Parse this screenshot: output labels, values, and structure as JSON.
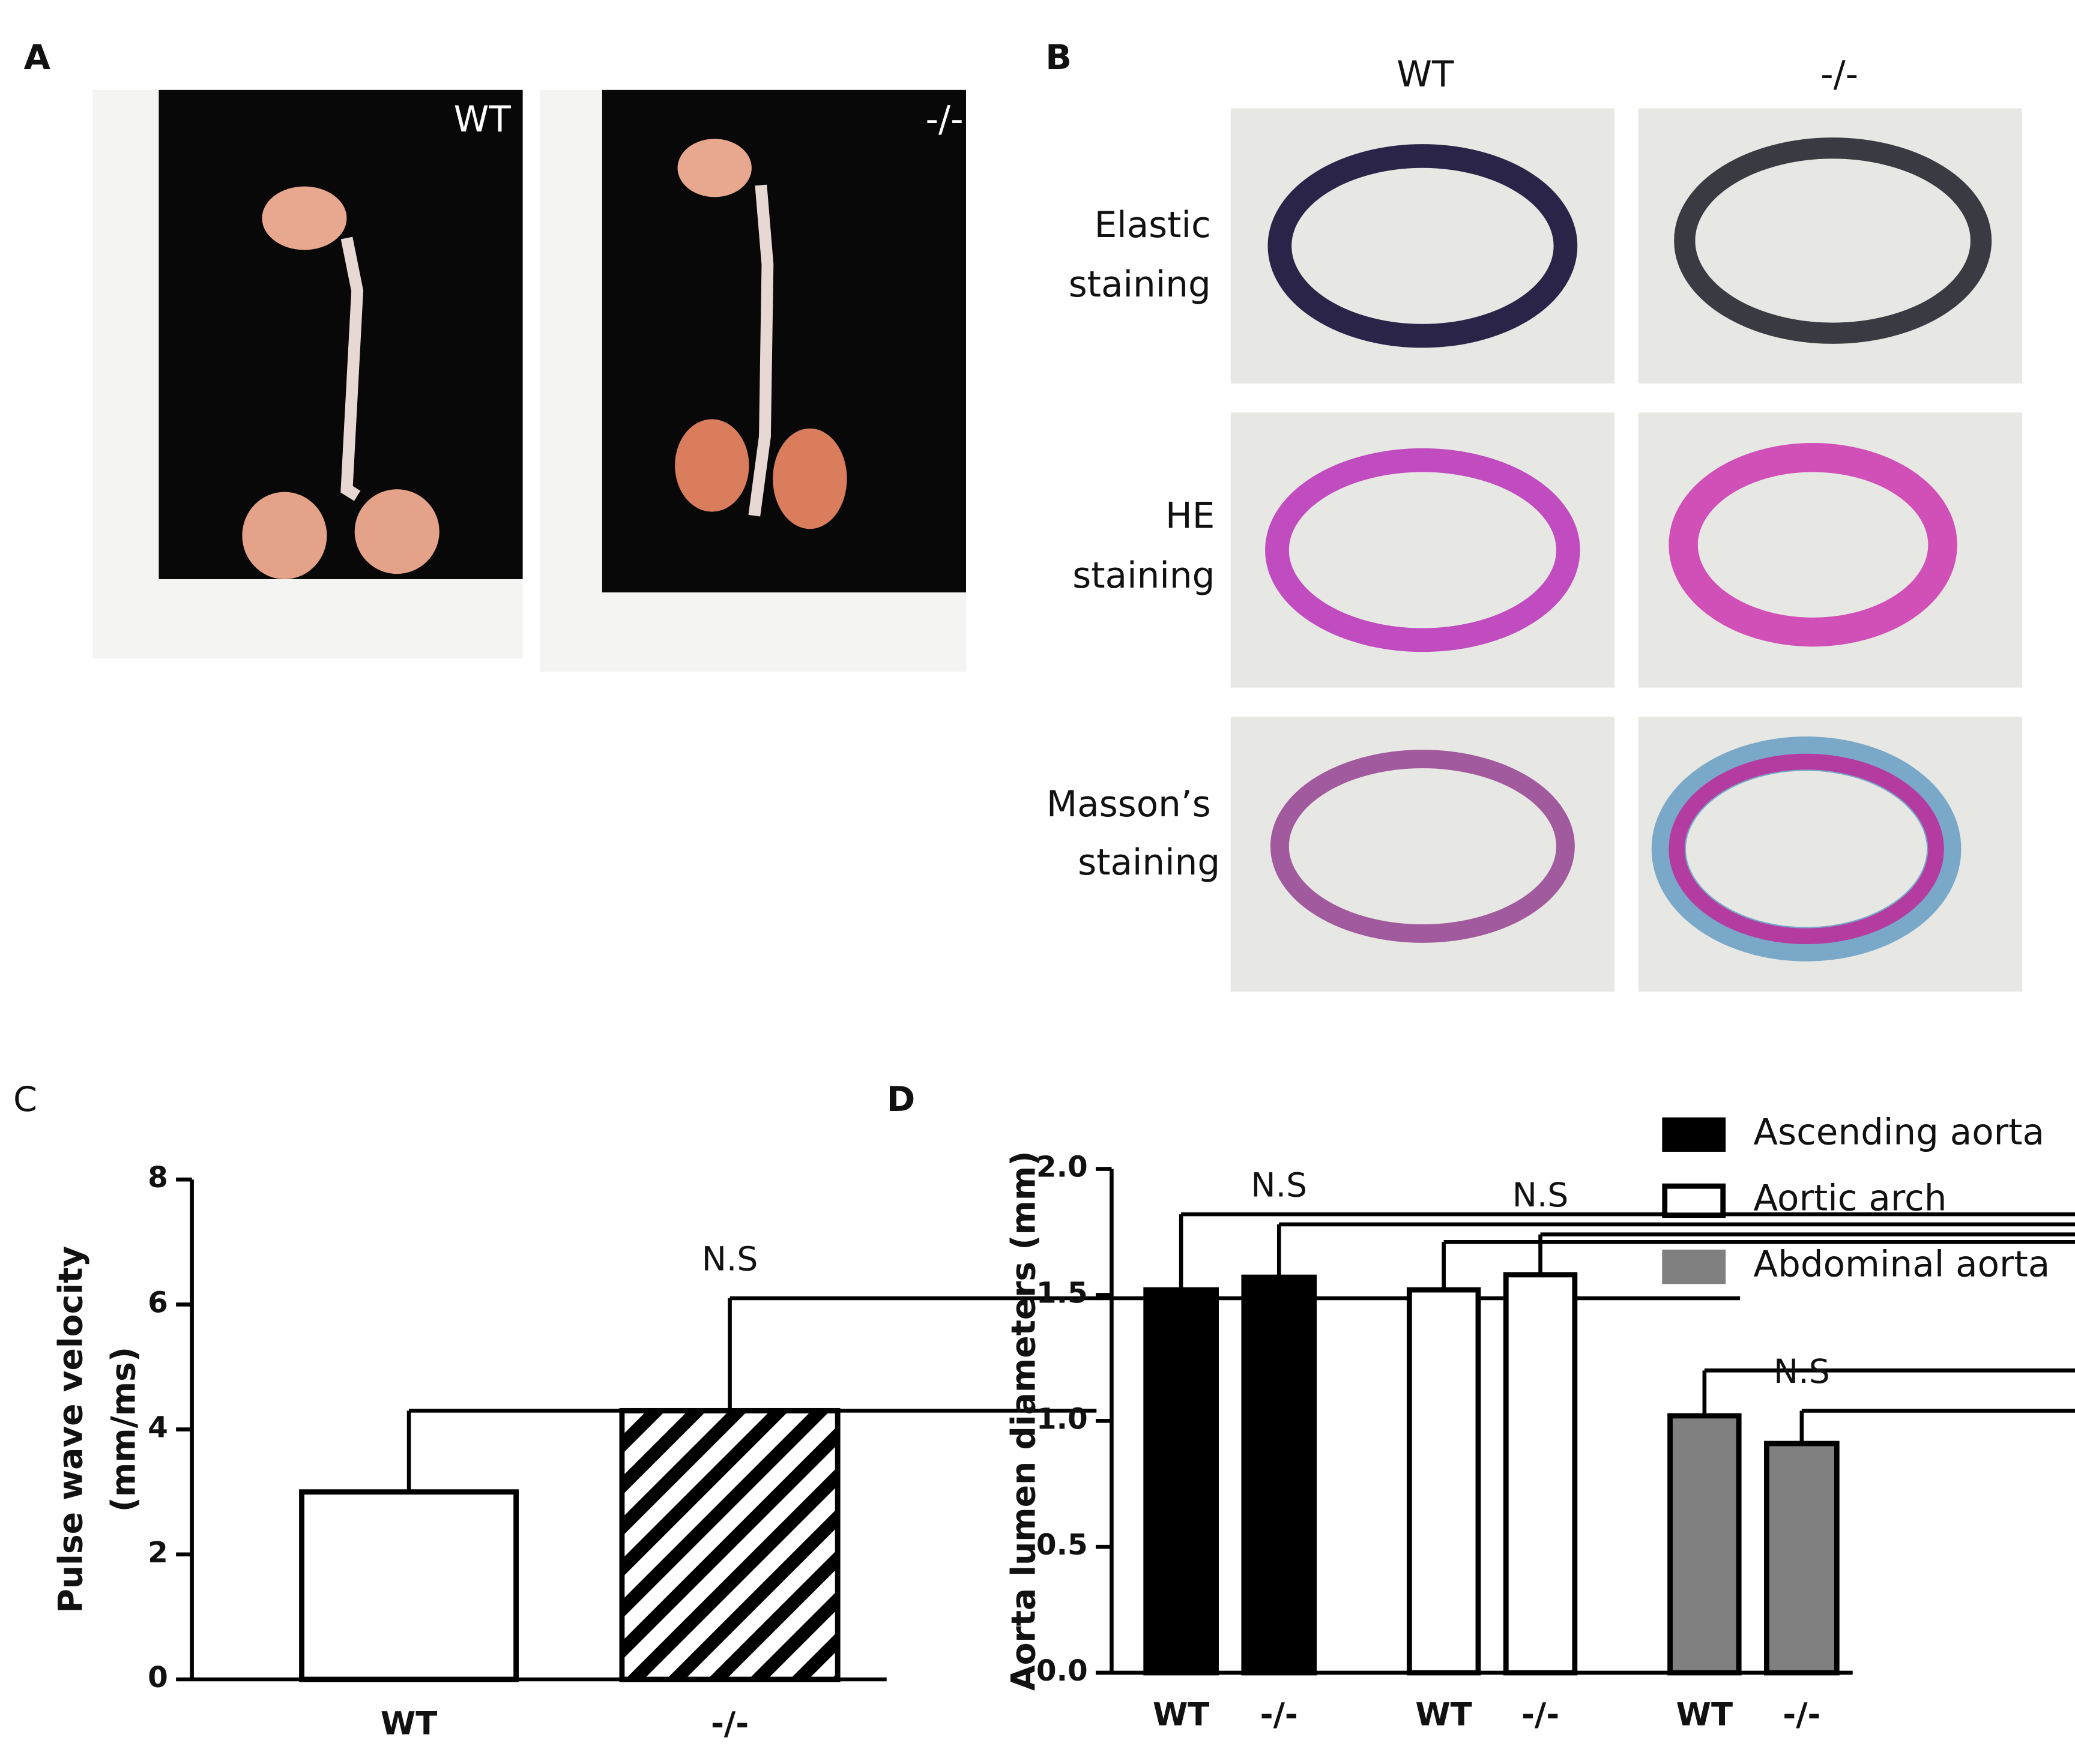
{
  "panels": {
    "labels": [
      "A",
      "B",
      "C",
      "D"
    ]
  },
  "photos": {
    "labels": [
      "WT",
      "-/-"
    ]
  },
  "histology": {
    "columns": [
      "WT",
      "-/-"
    ],
    "rows": [
      [
        "Elastic",
        "staining"
      ],
      [
        "HE",
        "staining"
      ],
      [
        "Masson’s",
        "staining"
      ]
    ]
  },
  "chart_data": [
    {
      "type": "bar",
      "ylabel": [
        "Pulse wave velocity",
        "(mm/ms)"
      ],
      "categories": [
        "WT",
        "-/-"
      ],
      "values": [
        3.0,
        4.3
      ],
      "errors": [
        1.3,
        1.8
      ],
      "colors": [
        "#ffffff",
        "#ffffff"
      ],
      "hatch": [
        false,
        true
      ],
      "ylim": [
        0,
        8
      ],
      "yticks": [
        0,
        2,
        4,
        6,
        8
      ],
      "annotations": [
        "N.S"
      ]
    },
    {
      "type": "grouped-bar",
      "ylabel": "Aorta lumen diameters (mm)",
      "categories": [
        "WT",
        "-/-"
      ],
      "series": [
        {
          "name": "Ascending aorta",
          "color": "#000000",
          "values": [
            1.52,
            1.57
          ],
          "errors": [
            0.3,
            0.21
          ]
        },
        {
          "name": "Aortic arch",
          "color": "#ffffff",
          "values": [
            1.52,
            1.58
          ],
          "errors": [
            0.19,
            0.16
          ]
        },
        {
          "name": "Abdominal aorta",
          "color": "#808080",
          "values": [
            1.02,
            0.91
          ],
          "errors": [
            0.18,
            0.13
          ]
        }
      ],
      "ylim": [
        0,
        2
      ],
      "yticks": [
        {
          "value": 0,
          "label": "0.0"
        },
        0.5,
        {
          "value": 1,
          "label": "1.0"
        },
        1.5,
        {
          "value": 2,
          "label": "2.0"
        }
      ],
      "annotations": [
        "N.S",
        "N.S",
        "N.S"
      ],
      "legend": "top-right"
    }
  ]
}
